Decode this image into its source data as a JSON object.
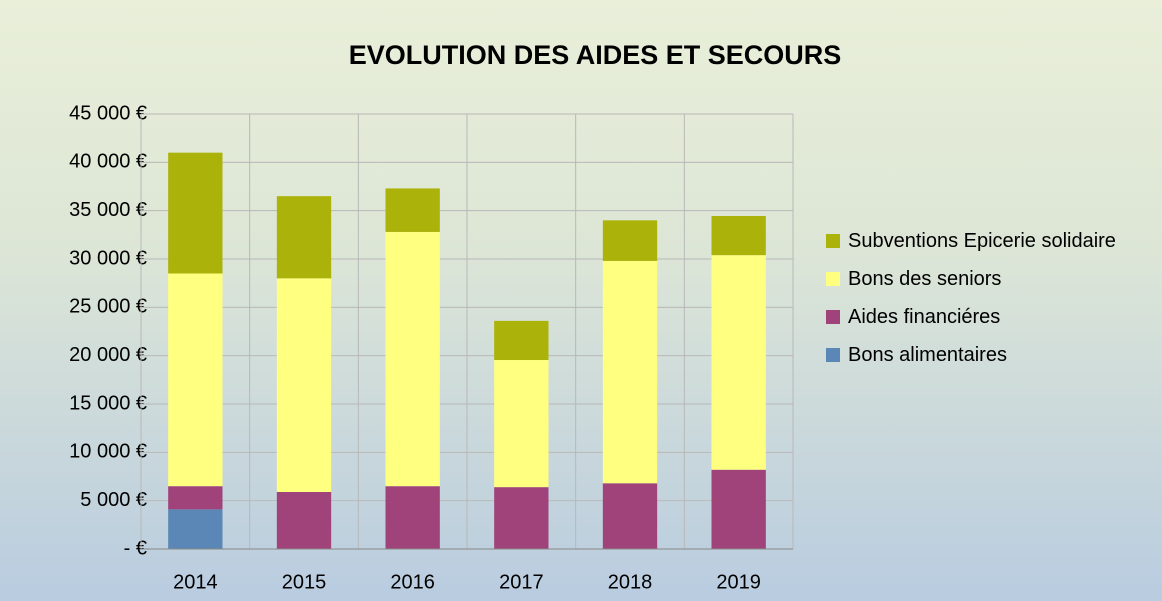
{
  "chart_data": {
    "type": "stacked_bar",
    "title": "EVOLUTION DES AIDES ET SECOURS",
    "categories": [
      "2014",
      "2015",
      "2016",
      "2017",
      "2018",
      "2019"
    ],
    "series": [
      {
        "name": "Bons alimentaires",
        "color": "#5b87b6",
        "values": [
          4100,
          0,
          0,
          0,
          0,
          0
        ]
      },
      {
        "name": "Aides financiéres",
        "color": "#a0437a",
        "values": [
          2400,
          5900,
          6500,
          6400,
          6800,
          8200
        ]
      },
      {
        "name": "Bons des seniors",
        "color": "#ffff80",
        "values": [
          22000,
          22100,
          26300,
          13150,
          23000,
          22200
        ]
      },
      {
        "name": "Subventions Epicerie solidaire",
        "color": "#abb30b",
        "values": [
          12500,
          8500,
          4500,
          4050,
          4200,
          4050
        ]
      }
    ],
    "ylim": [
      0,
      45000
    ],
    "yticks": [
      {
        "value": 0,
        "label": "- €"
      },
      {
        "value": 5000,
        "label": "5 000 €"
      },
      {
        "value": 10000,
        "label": "10 000 €"
      },
      {
        "value": 15000,
        "label": "15 000 €"
      },
      {
        "value": 20000,
        "label": "20 000 €"
      },
      {
        "value": 25000,
        "label": "25 000 €"
      },
      {
        "value": 30000,
        "label": "30 000 €"
      },
      {
        "value": 35000,
        "label": "35 000 €"
      },
      {
        "value": 40000,
        "label": "40 000 €"
      },
      {
        "value": 45000,
        "label": "45 000 €"
      }
    ],
    "grid": true,
    "legend": "right"
  }
}
